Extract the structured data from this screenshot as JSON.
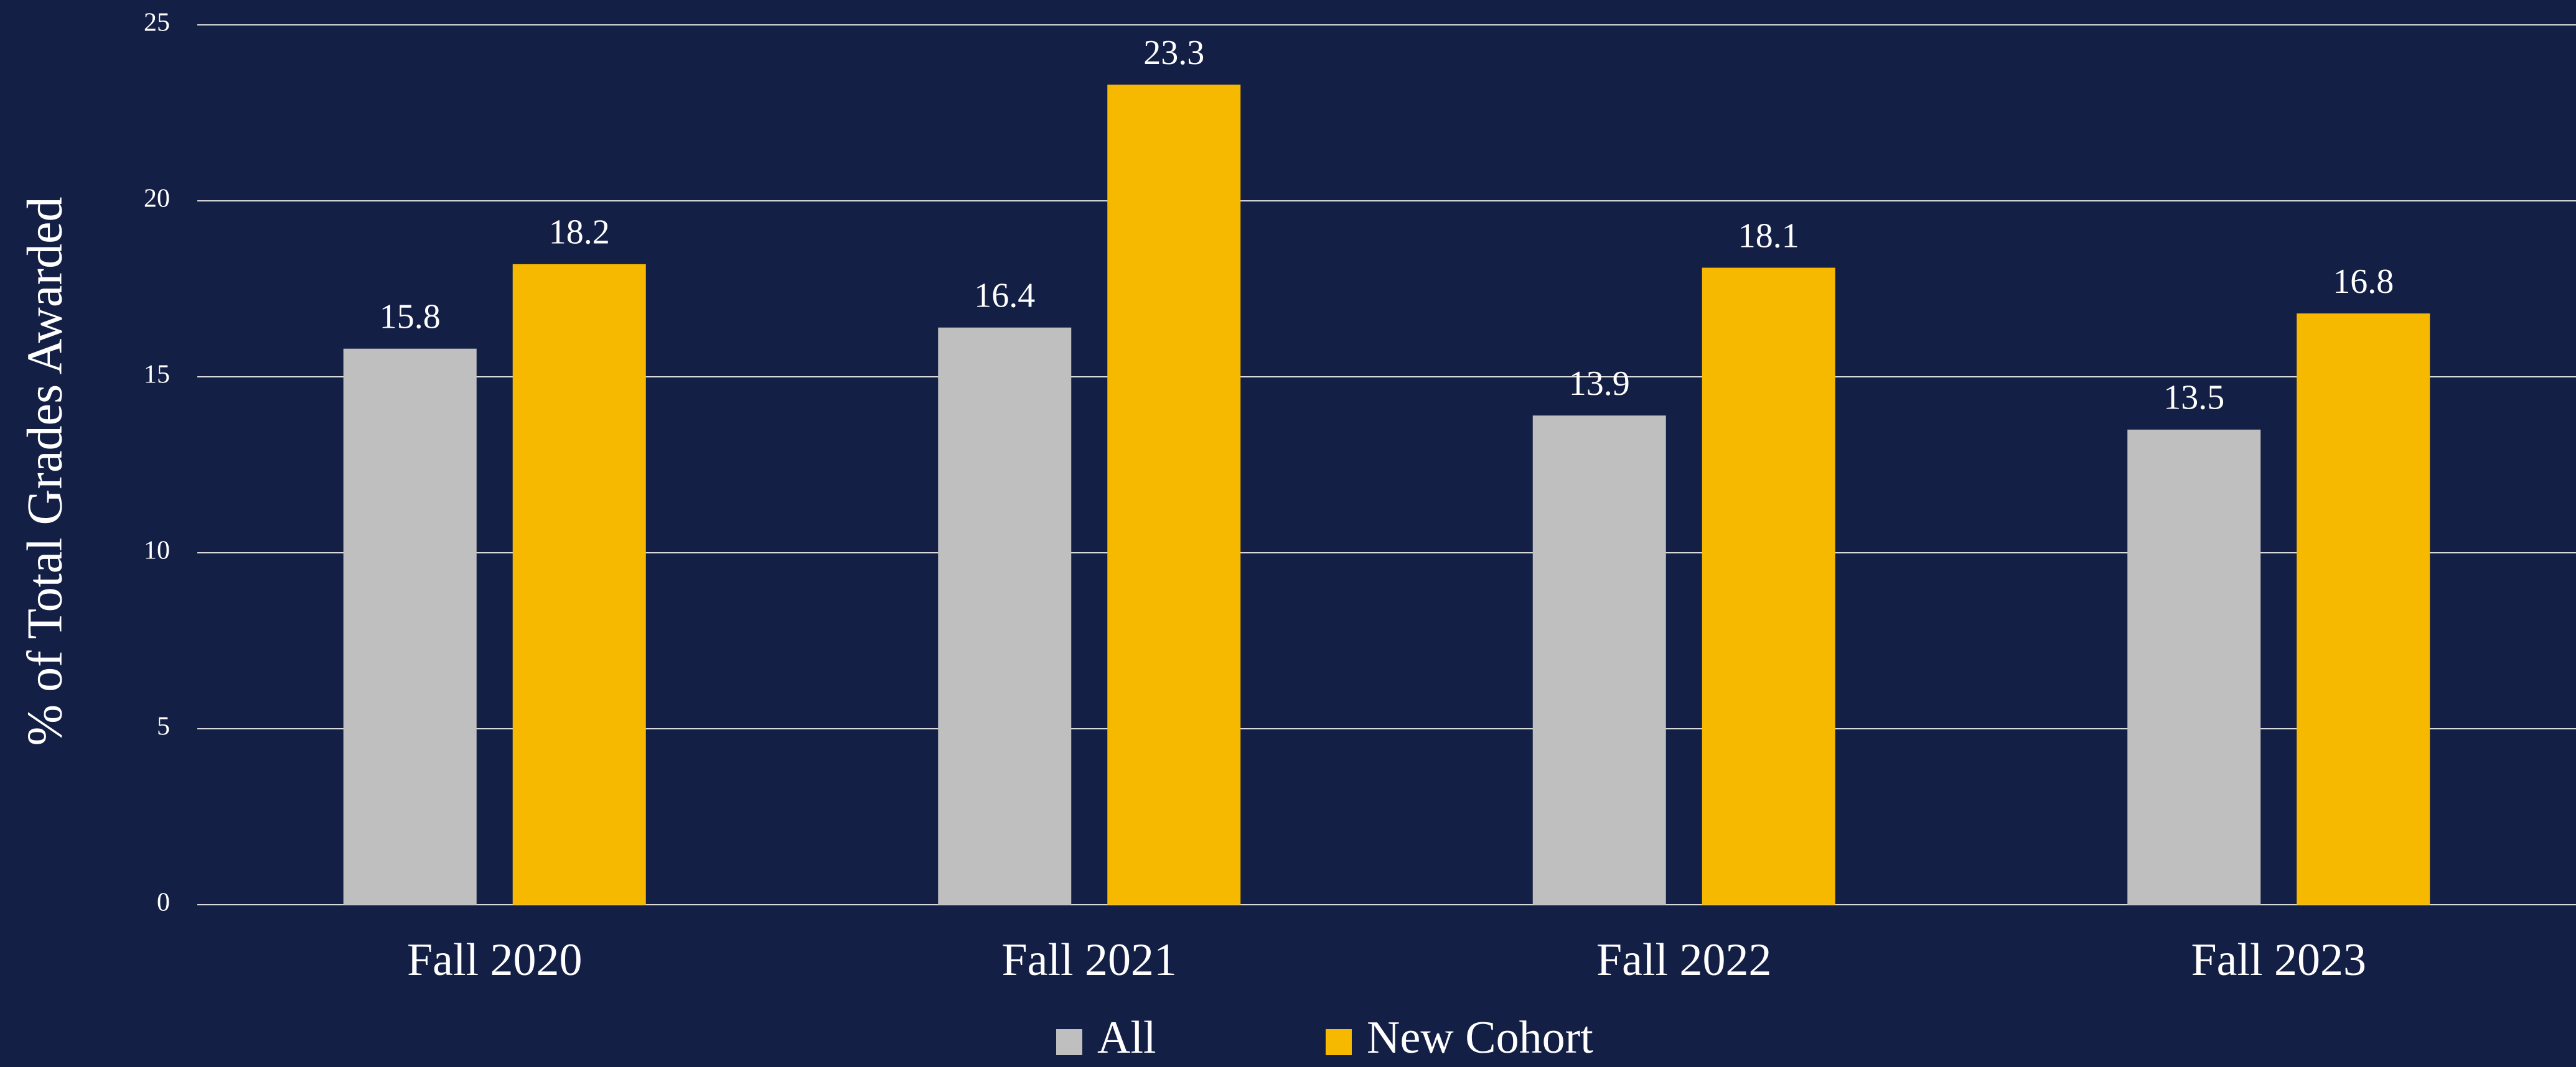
{
  "chart_data": {
    "type": "bar",
    "y_label": "% of Total Grades Awarded",
    "categories": [
      "Fall 2020",
      "Fall 2021",
      "Fall 2022",
      "Fall 2023"
    ],
    "series": [
      {
        "name": "All",
        "color": "#bfbfbf",
        "values": [
          15.8,
          16.4,
          13.9,
          13.5
        ]
      },
      {
        "name": "New Cohort",
        "color": "#f7b900",
        "values": [
          18.2,
          23.3,
          18.1,
          16.8
        ]
      }
    ],
    "ylim": [
      0,
      25
    ],
    "yticks": [
      0,
      5,
      10,
      15,
      20,
      25
    ],
    "grid": true,
    "legend": "bottom"
  }
}
